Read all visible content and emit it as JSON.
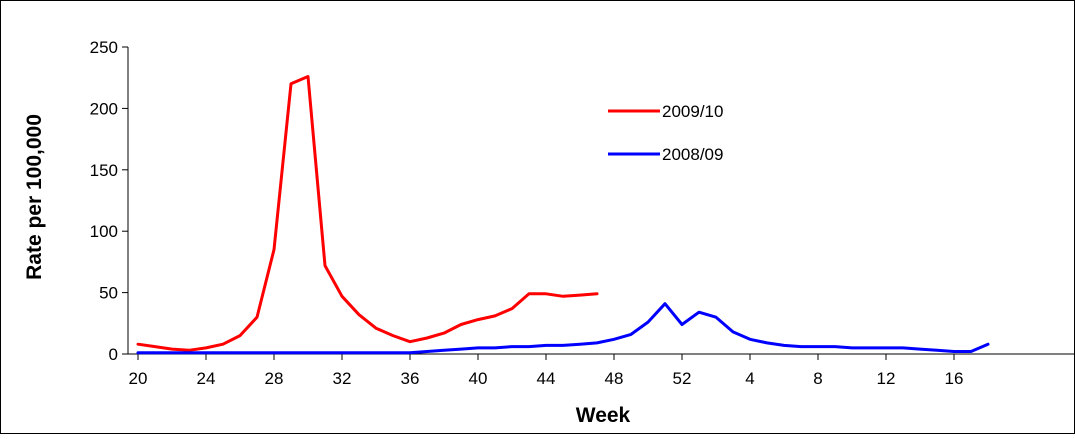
{
  "chart_data": {
    "type": "line",
    "xlabel": "Week",
    "ylabel": "Rate per 100,000",
    "ylim": [
      0,
      250
    ],
    "y_ticks": [
      "0",
      "50",
      "100",
      "150",
      "200",
      "250"
    ],
    "x_ticks": [
      "20",
      "24",
      "28",
      "32",
      "36",
      "40",
      "44",
      "48",
      "52",
      "4",
      "8",
      "12",
      "16"
    ],
    "x_axis_note": "weeks run 20 through 52, then continue 1 through 18 of the following year",
    "grid": false,
    "legend_position": "top-center",
    "series": [
      {
        "name": "2009/10",
        "color": "#ff0000",
        "x": [
          20,
          21,
          22,
          23,
          24,
          25,
          26,
          27,
          28,
          29,
          30,
          31,
          32,
          33,
          34,
          35,
          36,
          37,
          38,
          39,
          40,
          41,
          42,
          43,
          44,
          45,
          46,
          47
        ],
        "y": [
          8,
          6,
          4,
          3,
          5,
          8,
          15,
          30,
          85,
          220,
          226,
          72,
          47,
          32,
          21,
          15,
          10,
          13,
          17,
          24,
          28,
          31,
          37,
          49,
          49,
          47,
          48,
          49
        ]
      },
      {
        "name": "2008/09",
        "color": "#0000ff",
        "x": [
          20,
          21,
          22,
          23,
          24,
          25,
          26,
          27,
          28,
          29,
          30,
          31,
          32,
          33,
          34,
          35,
          36,
          37,
          38,
          39,
          40,
          41,
          42,
          43,
          44,
          45,
          46,
          47,
          48,
          49,
          50,
          51,
          52,
          "1",
          "2",
          "3",
          "4",
          "5",
          "6",
          "7",
          "8",
          "9",
          "10",
          "11",
          "12",
          "13",
          "14",
          "15",
          "16",
          "17",
          "18"
        ],
        "y": [
          1,
          1,
          1,
          1,
          1,
          1,
          1,
          1,
          1,
          1,
          1,
          1,
          1,
          1,
          1,
          1,
          1,
          2,
          3,
          4,
          5,
          5,
          6,
          6,
          7,
          7,
          8,
          9,
          12,
          16,
          26,
          41,
          24,
          34,
          30,
          18,
          12,
          9,
          7,
          6,
          6,
          6,
          5,
          5,
          5,
          5,
          4,
          3,
          2,
          2,
          8
        ]
      }
    ]
  }
}
